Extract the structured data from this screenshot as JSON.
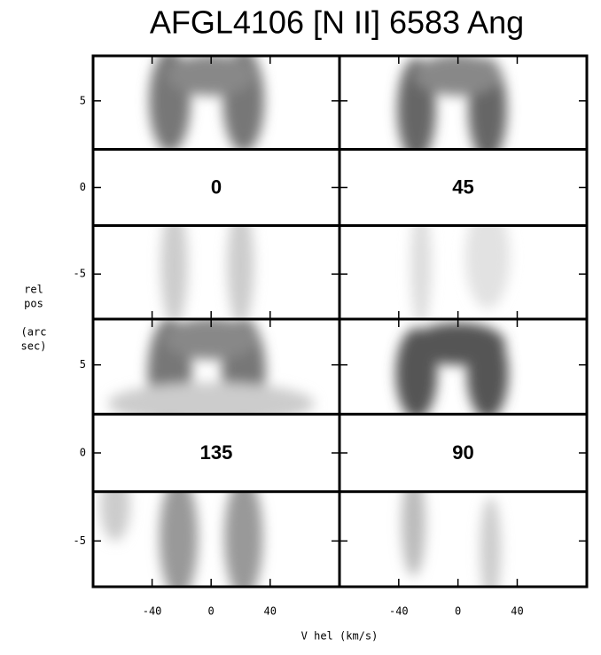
{
  "chart_data": {
    "type": "pv-diagram",
    "title": "AFGL4106 [N II] 6583 Ang",
    "x_label": "V hel (km/s)",
    "y_label": [
      "rel",
      "pos",
      "(arc",
      "sec)"
    ],
    "panels": [
      {
        "label": "0"
      },
      {
        "label": "45"
      },
      {
        "label": "135"
      },
      {
        "label": "90"
      }
    ],
    "xlim": [
      -80,
      87
    ],
    "xticks": [
      -40,
      0,
      40
    ],
    "ylim": [
      -7.6,
      7.6
    ],
    "yticks": [
      -5,
      0,
      5
    ]
  }
}
